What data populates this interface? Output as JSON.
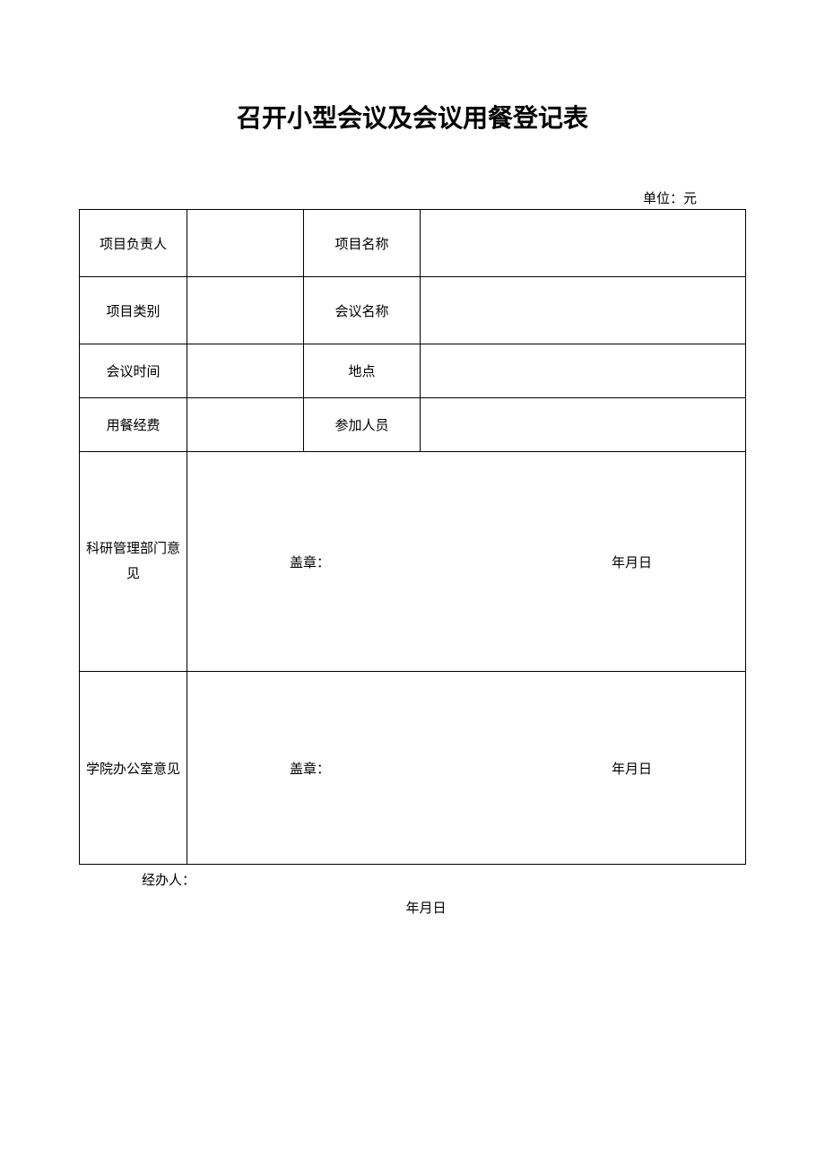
{
  "title": "召开小型会议及会议用餐登记表",
  "unit_label": "单位：元",
  "rows": {
    "r1": {
      "label1": "项目负责人",
      "value1": "",
      "label2": "项目名称",
      "value2": ""
    },
    "r2": {
      "label1": "项目类别",
      "value1": "",
      "label2": "会议名称",
      "value2": ""
    },
    "r3": {
      "label1": "会议时间",
      "value1": "",
      "label2": "地点",
      "value2": ""
    },
    "r4": {
      "label1": "用餐经费",
      "value1": "",
      "label2": "参加人员",
      "value2": ""
    }
  },
  "opinion1": {
    "label": "科研管理部门意见",
    "stamp": "盖章：",
    "date": "年月日"
  },
  "opinion2": {
    "label": "学院办公室意见",
    "stamp": "盖章：",
    "date": "年月日"
  },
  "handler_label": "经办人：",
  "bottom_date": "年月日"
}
